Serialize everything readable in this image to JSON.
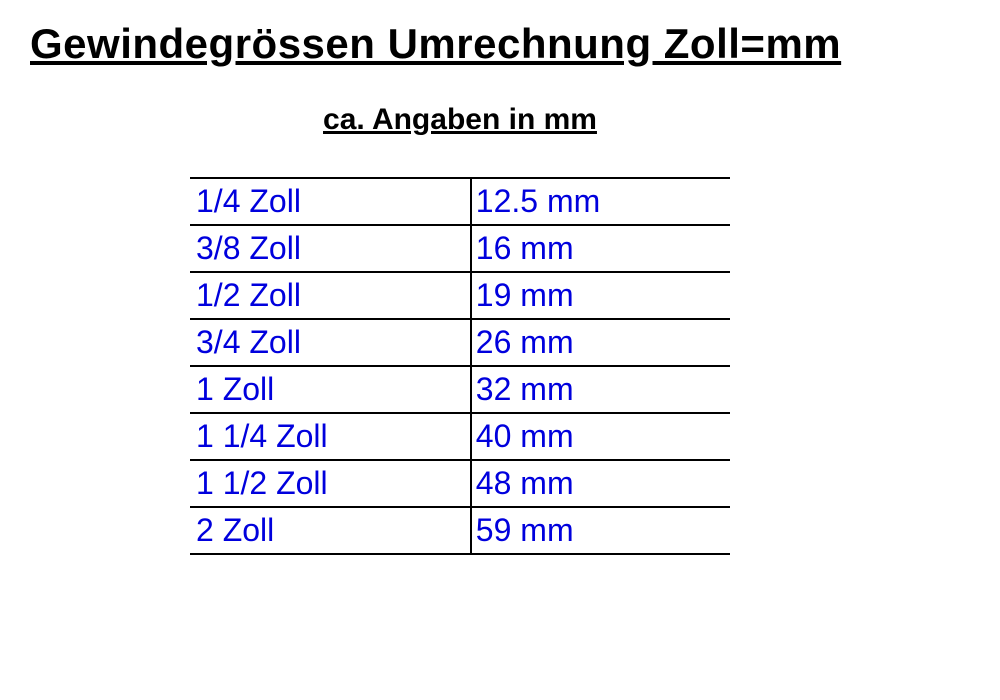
{
  "title": "Gewindegrössen Umrechnung Zoll=mm",
  "subtitle": "ca. Angaben in mm",
  "table": {
    "type": "table",
    "columns": [
      "zoll",
      "mm"
    ],
    "rows": [
      {
        "zoll": "1/4 Zoll",
        "mm": "12.5 mm"
      },
      {
        "zoll": "3/8 Zoll",
        "mm": "16 mm"
      },
      {
        "zoll": "1/2 Zoll",
        "mm": "19 mm"
      },
      {
        "zoll": "3/4 Zoll",
        "mm": "26 mm"
      },
      {
        "zoll": "1 Zoll",
        "mm": "32 mm"
      },
      {
        "zoll": "1 1/4 Zoll",
        "mm": "40 mm"
      },
      {
        "zoll": "1 1/2 Zoll",
        "mm": "48 mm"
      },
      {
        "zoll": "2 Zoll",
        "mm": "59 mm"
      }
    ],
    "cell_text_color": "#0000dd",
    "border_color": "#000000",
    "background_color": "#ffffff",
    "cell_fontsize": 32,
    "title_fontsize": 42,
    "subtitle_fontsize": 30,
    "col_zoll_width_pct": 52,
    "col_mm_width_pct": 48
  }
}
